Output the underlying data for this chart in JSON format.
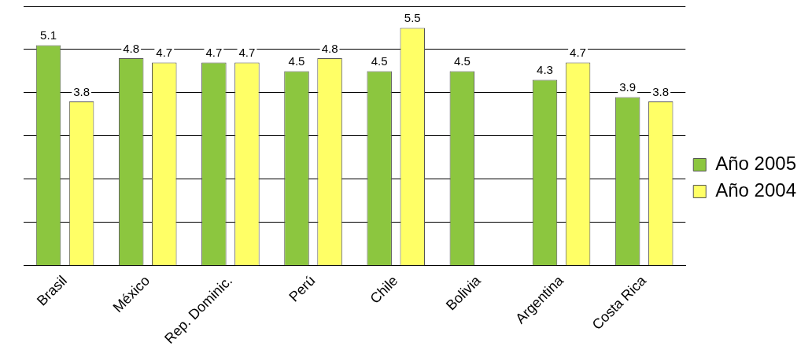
{
  "chart_data": {
    "type": "bar",
    "categories": [
      "Brasil",
      "México",
      "Rep. Dominic.",
      "Perú",
      "Chile",
      "Bolivia",
      "Argentina",
      "Costa Rica"
    ],
    "series": [
      {
        "name": "Año 2005",
        "color": "#8cc63f",
        "values": [
          5.1,
          4.8,
          4.7,
          4.5,
          4.5,
          4.5,
          4.3,
          3.9
        ]
      },
      {
        "name": "Año 2004",
        "color": "#ffff66",
        "values": [
          3.8,
          4.7,
          4.7,
          4.8,
          5.5,
          null,
          4.7,
          3.8
        ]
      }
    ],
    "ylim": [
      0,
      6
    ],
    "yticks": [
      {
        "value": 0,
        "label": null
      },
      {
        "value": 1,
        "label": null
      },
      {
        "value": 2,
        "label": null
      },
      {
        "value": 3,
        "label": null
      },
      {
        "value": 4,
        "label": null
      },
      {
        "value": 5,
        "label": null
      },
      {
        "value": 6,
        "label": null
      }
    ],
    "tick_labels": "x",
    "grid": "y",
    "legend": "right",
    "data_labels": true
  }
}
